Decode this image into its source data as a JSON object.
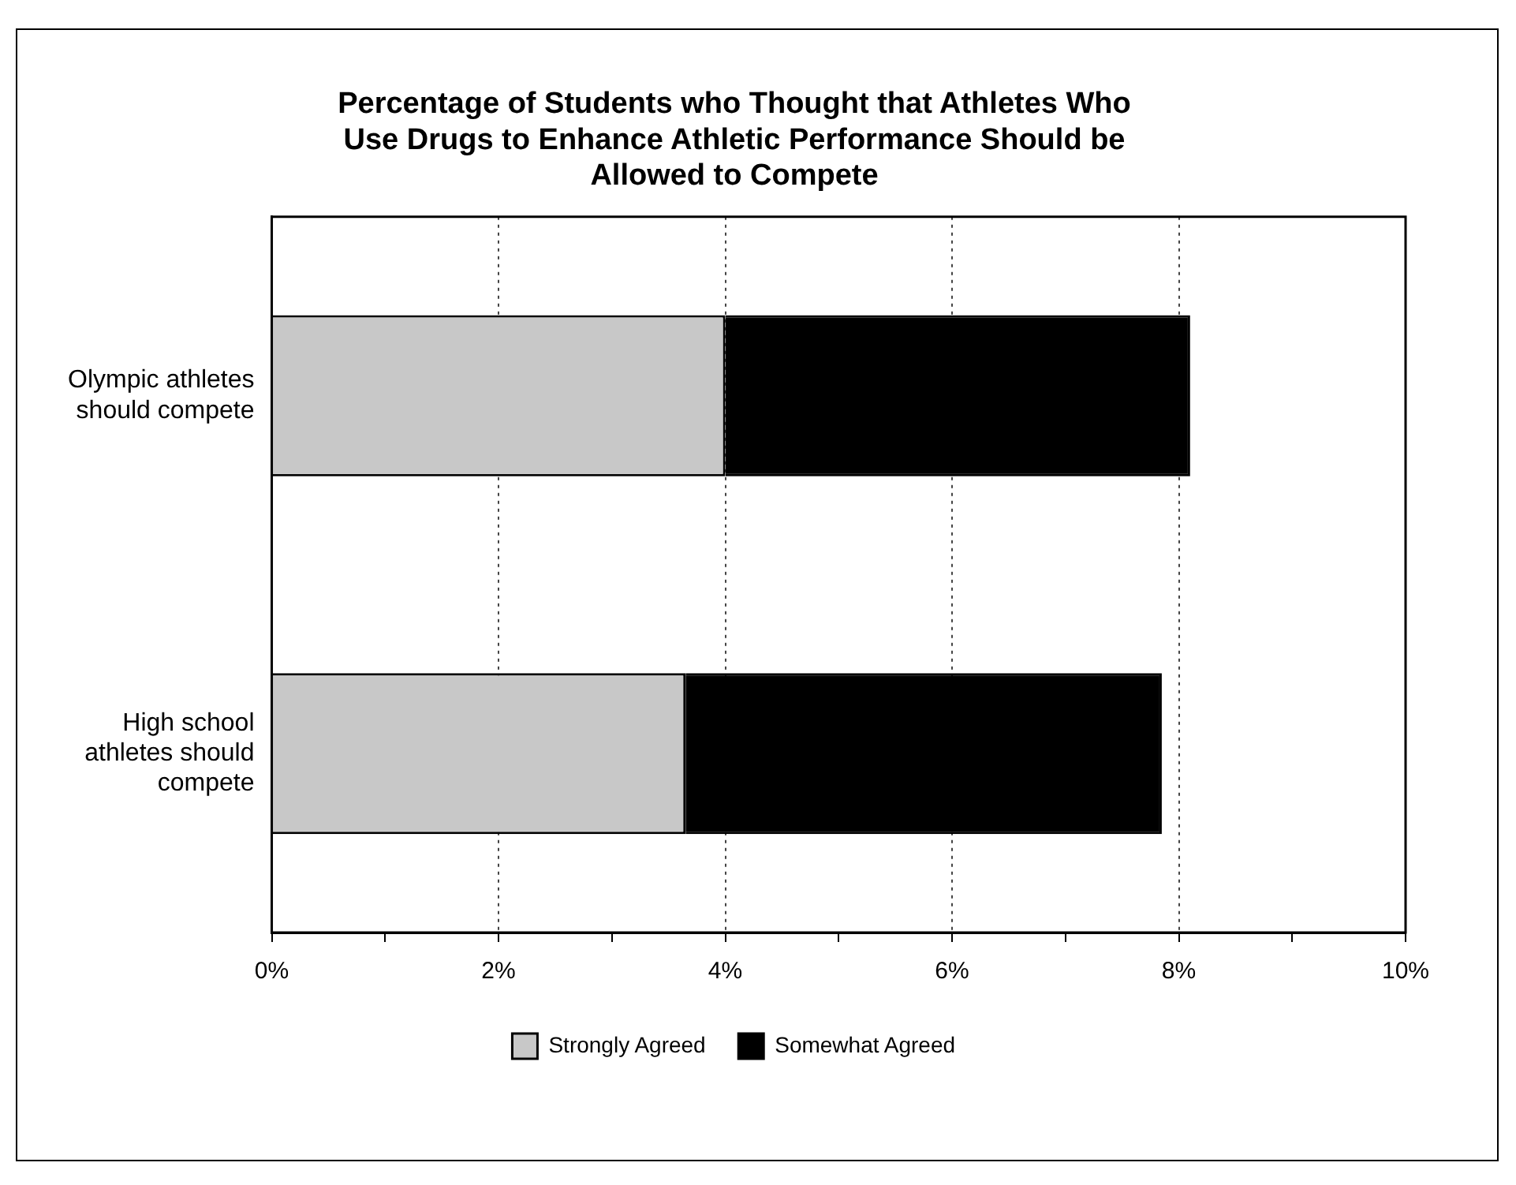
{
  "chart_data": {
    "type": "bar",
    "orientation": "horizontal",
    "stacked": true,
    "title": "Percentage of Students who Thought that Athletes Who Use Drugs to Enhance Athletic Performance Should be Allowed to Compete",
    "categories": [
      "Olympic athletes should compete",
      "High school athletes should compete"
    ],
    "series": [
      {
        "name": "Strongly Agreed",
        "color": "#c8c8c8",
        "values": [
          4.0,
          3.65
        ]
      },
      {
        "name": "Somewhat Agreed",
        "color": "#000000",
        "values": [
          4.1,
          4.2
        ]
      }
    ],
    "xlim": [
      0,
      10
    ],
    "xticks": [
      {
        "value": 0,
        "label": "0%"
      },
      {
        "value": 1,
        "label": null
      },
      {
        "value": 2,
        "label": "2%"
      },
      {
        "value": 3,
        "label": null
      },
      {
        "value": 4,
        "label": "4%"
      },
      {
        "value": 5,
        "label": null
      },
      {
        "value": 6,
        "label": "6%"
      },
      {
        "value": 7,
        "label": null
      },
      {
        "value": 8,
        "label": "8%"
      },
      {
        "value": 9,
        "label": null
      },
      {
        "value": 10,
        "label": "10%"
      }
    ],
    "grid": "x",
    "legend": "bottom"
  }
}
